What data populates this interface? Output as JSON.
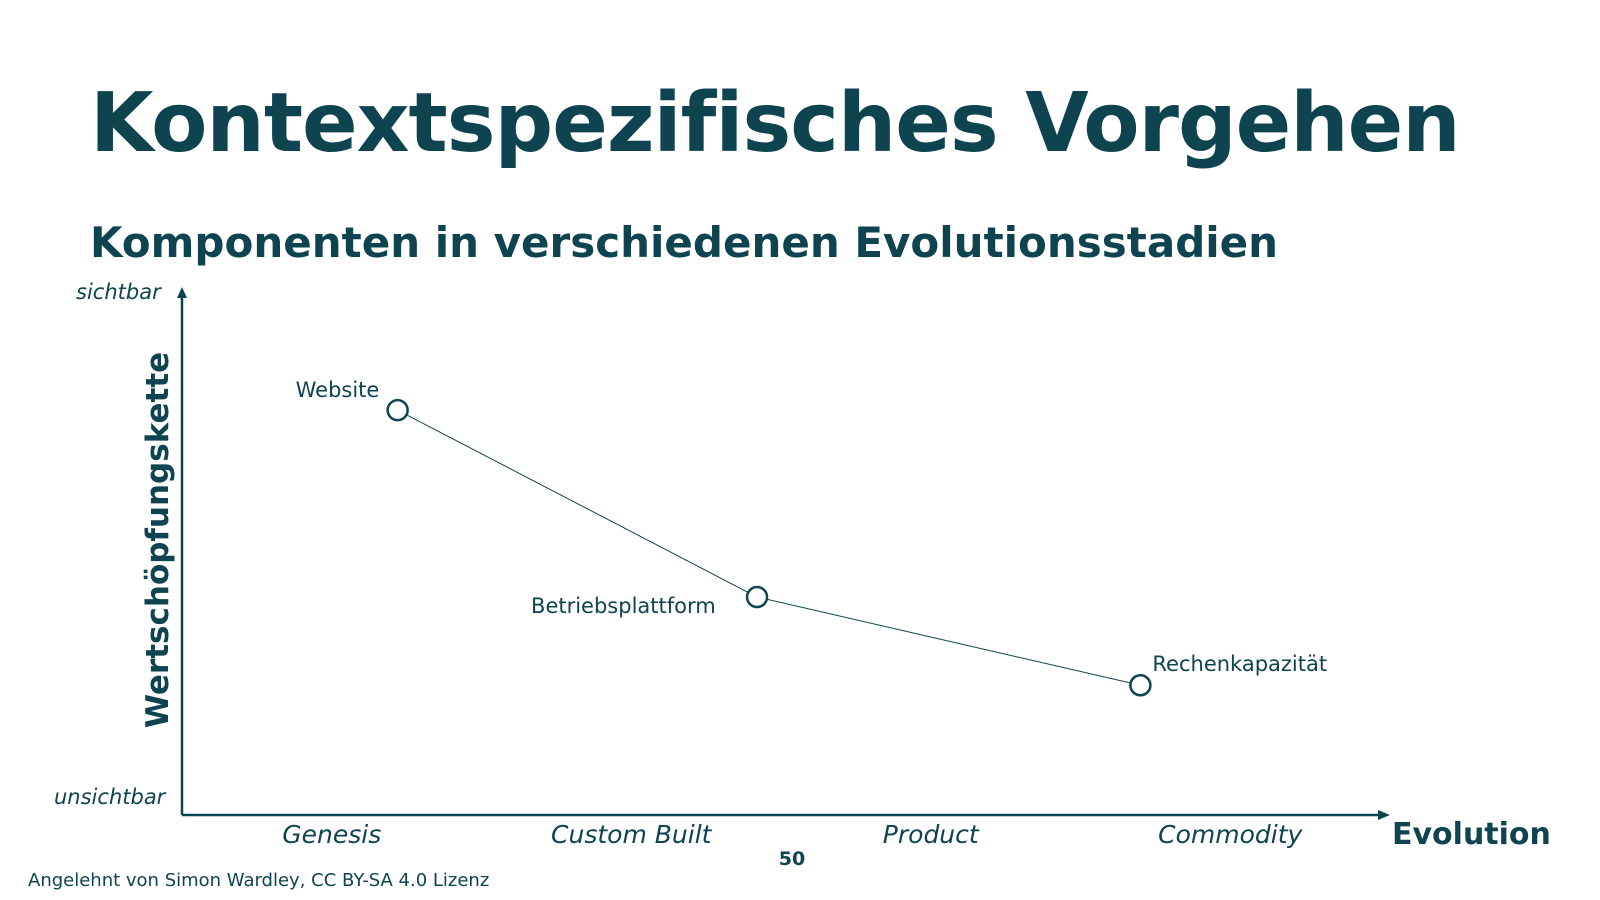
{
  "slide": {
    "title": "Kontextspezifisches Vorgehen",
    "subtitle": "Komponenten in verschiedenen Evolutionsstadien",
    "page_number": "50",
    "footer": "Angelehnt von Simon Wardley, CC BY-SA 4.0 Lizenz"
  },
  "colors": {
    "primary": "#0e4350"
  },
  "chart_data": {
    "type": "wardley-map",
    "y_axis": {
      "title": "Wertschöpfungskette",
      "top_label": "sichtbar",
      "bottom_label": "unsichtbar"
    },
    "x_axis": {
      "title": "Evolution",
      "stages": [
        "Genesis",
        "Custom Built",
        "Product",
        "Commodity"
      ]
    },
    "components": [
      {
        "name": "Website",
        "evolution": 0.18,
        "visibility": 0.78
      },
      {
        "name": "Betriebsplattform",
        "evolution": 0.48,
        "visibility": 0.42
      },
      {
        "name": "Rechenkapazität",
        "evolution": 0.8,
        "visibility": 0.25
      }
    ],
    "links": [
      [
        "Website",
        "Betriebsplattform"
      ],
      [
        "Betriebsplattform",
        "Rechenkapazität"
      ]
    ]
  }
}
